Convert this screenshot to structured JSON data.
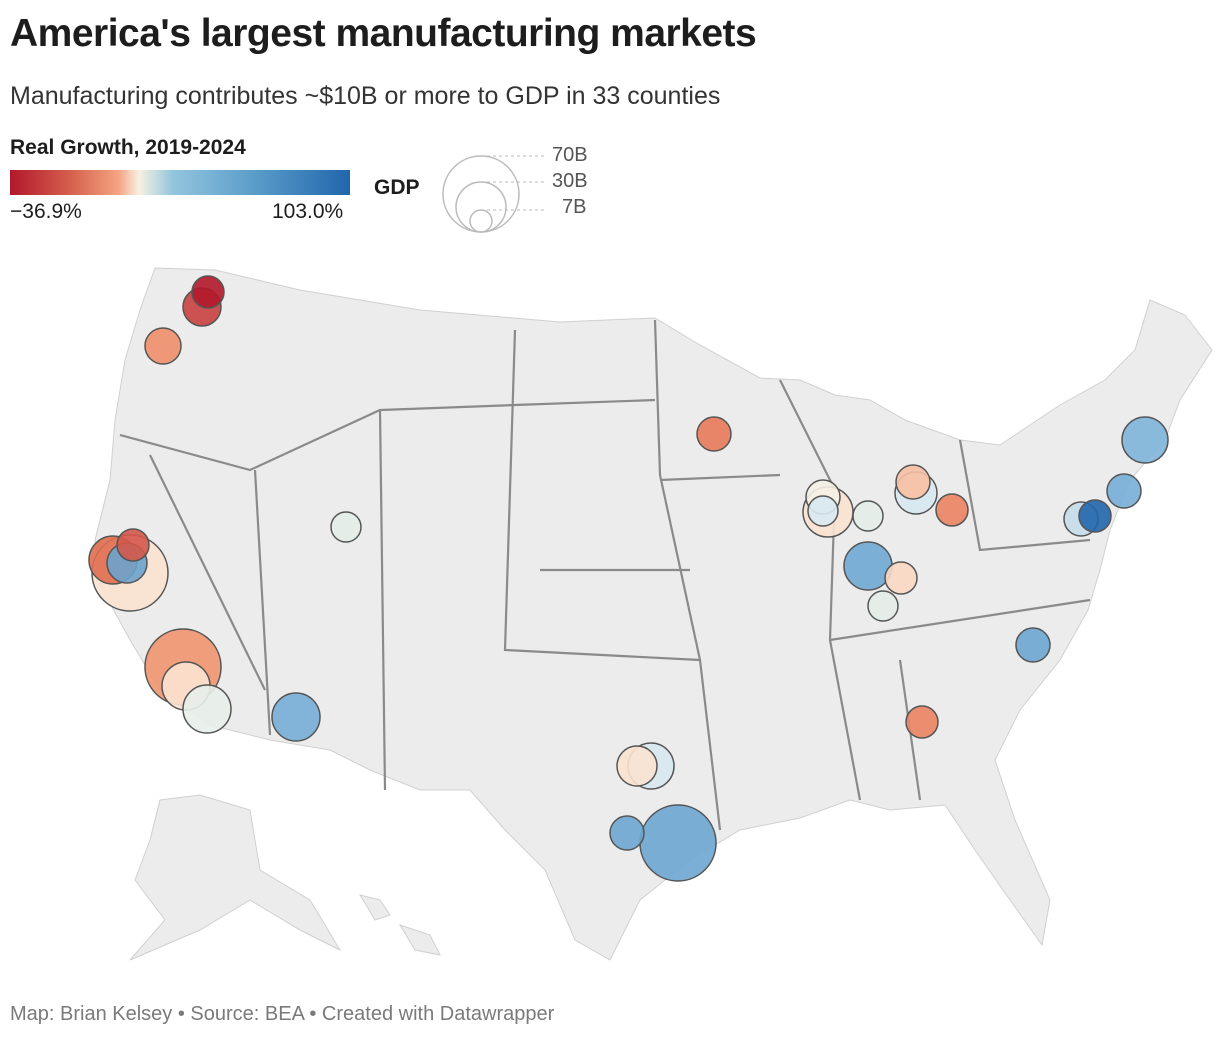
{
  "title": "America's largest manufacturing markets",
  "subtitle": "Manufacturing contributes ~$10B or more to GDP in 33 counties",
  "color_legend": {
    "title": "Real Growth, 2019-2024",
    "min_label": "−36.9%",
    "max_label": "103.0%",
    "colors": [
      "#b2182b",
      "#f4a582",
      "#f7f1e3",
      "#92c5de",
      "#2166ac"
    ]
  },
  "size_legend": {
    "title": "GDP",
    "labels": [
      "70B",
      "30B",
      "7B"
    ]
  },
  "map": {
    "land_color": "#ececec",
    "border_color": "#8a8a8a",
    "marker_colors": [
      "#c94040",
      "#b2182b",
      "#ef8f6b",
      "#e8795a",
      "#e4ede9",
      "#fbe3d2",
      "#e06d4f",
      "#6aa3cd",
      "#d4584a",
      "#ef956f",
      "#fbe3d2",
      "#e8eeea",
      "#76aed6",
      "#d8e9f1",
      "#fbe3d2",
      "#6ea6d2",
      "#6ea6d2",
      "#fbe3d2",
      "#f5efe6",
      "#d8e9f1",
      "#e4ede9",
      "#70a8d3",
      "#fbd8c2",
      "#e4ede9",
      "#d8e9f1",
      "#f7c0a3",
      "#ea8462",
      "#80b5d9",
      "#76aed6",
      "#c6dcea",
      "#2166ac",
      "#6ea6d2",
      "#ea8462"
    ]
  },
  "footer": "Map: Brian Kelsey • Source: BEA • Created with Datawrapper"
}
